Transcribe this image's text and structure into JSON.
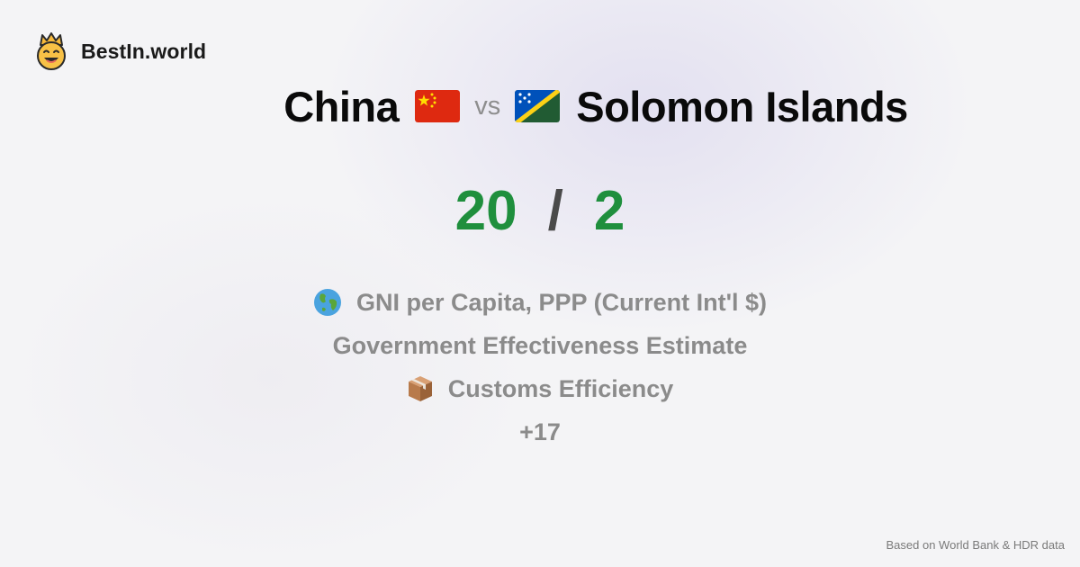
{
  "brand": {
    "name": "BestIn.world",
    "logo_icon": "smiling-crown-face-icon"
  },
  "comparison": {
    "country_a": {
      "name": "China",
      "flag_icon": "china-flag-icon"
    },
    "vs_label": "vs",
    "country_b": {
      "name": "Solomon Islands",
      "flag_icon": "solomon-islands-flag-icon"
    }
  },
  "scores": {
    "a": "20",
    "separator": "/",
    "b": "2",
    "color": "#1f8f3d"
  },
  "metrics": [
    {
      "label": "GNI per Capita, PPP (Current Int'l $)",
      "icon": "globe-icon"
    },
    {
      "label": "Government Effectiveness Estimate",
      "icon": ""
    },
    {
      "label": "Customs Efficiency",
      "icon": "package-icon"
    },
    {
      "label": "+17",
      "icon": ""
    }
  ],
  "footer": {
    "source": "Based on World Bank & HDR data"
  }
}
